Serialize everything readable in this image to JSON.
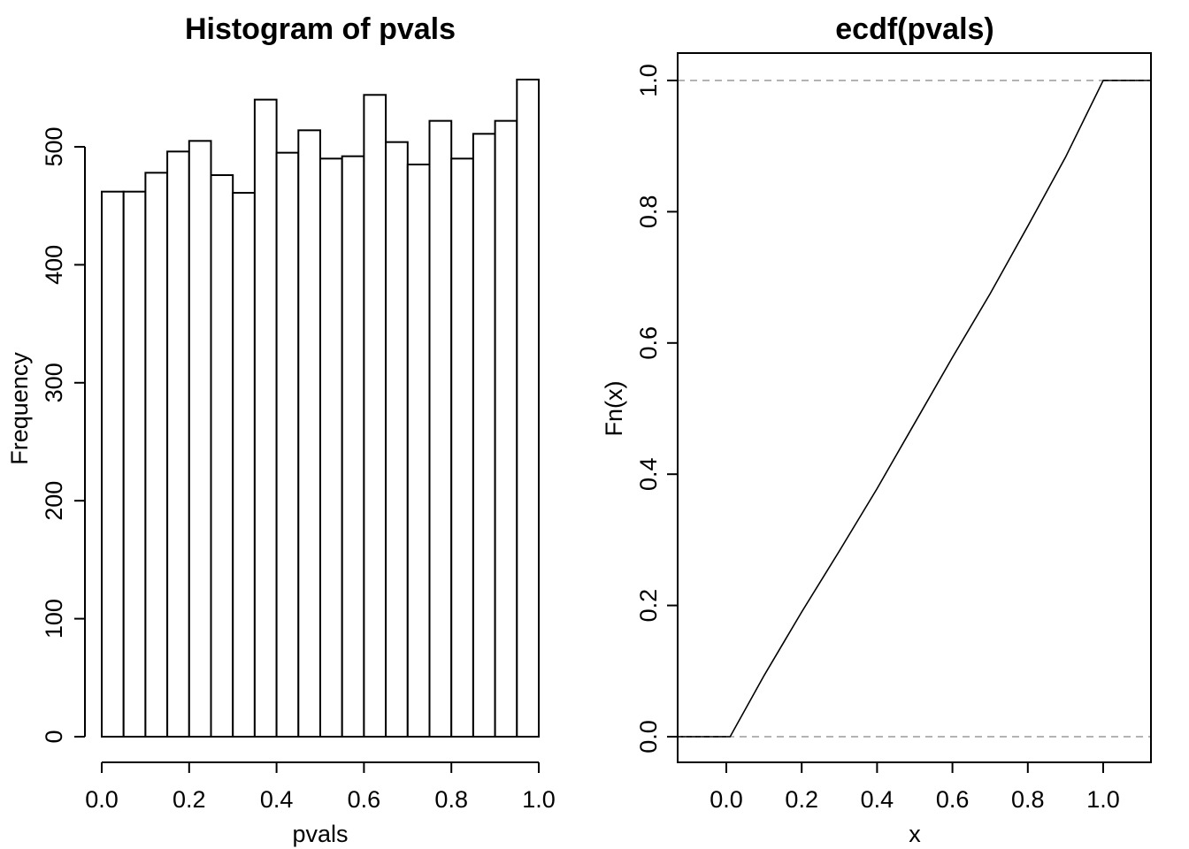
{
  "chart_data": [
    {
      "type": "bar",
      "title": "Histogram of pvals",
      "xlabel": "pvals",
      "ylabel": "Frequency",
      "bin_edges": [
        0.0,
        0.05,
        0.1,
        0.15,
        0.2,
        0.25,
        0.3,
        0.35,
        0.4,
        0.45,
        0.5,
        0.55,
        0.6,
        0.65,
        0.7,
        0.75,
        0.8,
        0.85,
        0.9,
        0.95,
        1.0
      ],
      "values": [
        462,
        462,
        478,
        496,
        505,
        476,
        461,
        540,
        495,
        514,
        490,
        492,
        544,
        504,
        485,
        522,
        490,
        511,
        522,
        557
      ],
      "xlim": [
        0.0,
        1.0
      ],
      "ylim": [
        0,
        560
      ],
      "x_ticks": [
        "0.0",
        "0.2",
        "0.4",
        "0.6",
        "0.8",
        "1.0"
      ],
      "y_ticks": [
        "0",
        "100",
        "200",
        "300",
        "400",
        "500"
      ],
      "grid": false
    },
    {
      "type": "line",
      "title": "ecdf(pvals)",
      "xlabel": "x",
      "ylabel": "Fn(x)",
      "x": [
        -0.12,
        0.0,
        0.01,
        0.1,
        0.2,
        0.3,
        0.4,
        0.5,
        0.6,
        0.7,
        0.8,
        0.9,
        1.0,
        1.12
      ],
      "y": [
        0.0,
        0.0,
        0.0,
        0.093,
        0.19,
        0.283,
        0.378,
        0.478,
        0.578,
        0.675,
        0.778,
        0.883,
        1.0,
        1.0
      ],
      "hlines": [
        0,
        1
      ],
      "xlim": [
        -0.12,
        1.12
      ],
      "ylim": [
        -0.04,
        1.04
      ],
      "x_ticks": [
        "0.0",
        "0.2",
        "0.4",
        "0.6",
        "0.8",
        "1.0"
      ],
      "y_ticks": [
        "0.0",
        "0.2",
        "0.4",
        "0.6",
        "0.8",
        "1.0"
      ],
      "grid": false
    }
  ]
}
